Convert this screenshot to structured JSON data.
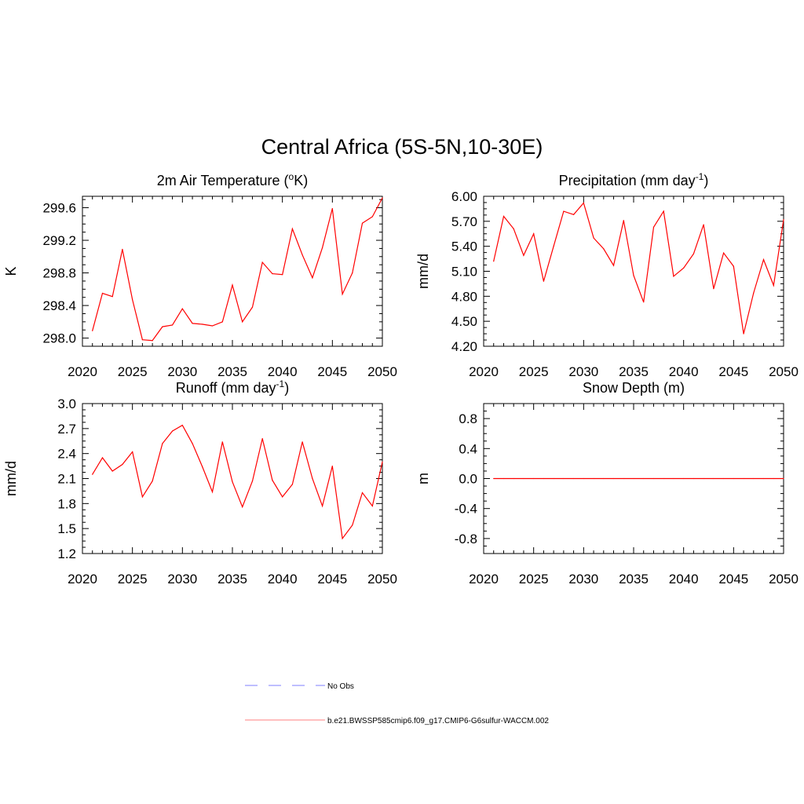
{
  "figure": {
    "title": "Central Africa (5S-5N,10-30E)"
  },
  "colors": {
    "model_line": "#ff0000",
    "obs_line": "#9999ff",
    "axis": "#000000",
    "background": "#ffffff"
  },
  "chart_data": [
    {
      "type": "line",
      "title": "2m Air Temperature (",
      "title_superscript": "o",
      "title_suffix": "K)",
      "ylabel": "K",
      "xlim": [
        2020,
        2050
      ],
      "ylim": [
        297.9,
        299.74
      ],
      "xticks": [
        2020,
        2025,
        2030,
        2035,
        2040,
        2045,
        2050
      ],
      "xtick_labels": [
        "2020",
        "2025",
        "2030",
        "2035",
        "2040",
        "2045",
        "2050"
      ],
      "yticks": [
        298.0,
        298.4,
        298.8,
        299.2,
        299.6
      ],
      "ytick_labels": [
        "298.0",
        "298.4",
        "298.8",
        "299.2",
        "299.6"
      ],
      "x": [
        2021,
        2022,
        2023,
        2024,
        2025,
        2026,
        2027,
        2028,
        2029,
        2030,
        2031,
        2032,
        2033,
        2034,
        2035,
        2036,
        2037,
        2038,
        2039,
        2040,
        2041,
        2042,
        2043,
        2044,
        2045,
        2046,
        2047,
        2048,
        2049,
        2050
      ],
      "series": [
        {
          "name": "b.e21.BWSSP585cmip6.f09_g17.CMIP6-G6sulfur-WACCM.002",
          "values": [
            298.09,
            298.55,
            298.51,
            299.09,
            298.47,
            297.98,
            297.97,
            298.14,
            298.16,
            298.36,
            298.18,
            298.17,
            298.15,
            298.2,
            298.65,
            298.2,
            298.38,
            298.93,
            298.79,
            298.78,
            299.34,
            299.02,
            298.74,
            299.11,
            299.59,
            298.54,
            298.8,
            299.41,
            299.49,
            299.72
          ]
        }
      ]
    },
    {
      "type": "line",
      "title": "Precipitation (mm day",
      "title_superscript": "-1",
      "title_suffix": ")",
      "ylabel": "mm/d",
      "xlim": [
        2020,
        2050
      ],
      "ylim": [
        4.2,
        6.0
      ],
      "xticks": [
        2020,
        2025,
        2030,
        2035,
        2040,
        2045,
        2050
      ],
      "xtick_labels": [
        "2020",
        "2025",
        "2030",
        "2035",
        "2040",
        "2045",
        "2050"
      ],
      "yticks": [
        4.2,
        4.5,
        4.8,
        5.1,
        5.4,
        5.7,
        6.0
      ],
      "ytick_labels": [
        "4.20",
        "4.50",
        "4.80",
        "5.10",
        "5.40",
        "5.70",
        "6.00"
      ],
      "x": [
        2021,
        2022,
        2023,
        2024,
        2025,
        2026,
        2027,
        2028,
        2029,
        2030,
        2031,
        2032,
        2033,
        2034,
        2035,
        2036,
        2037,
        2038,
        2039,
        2040,
        2041,
        2042,
        2043,
        2044,
        2045,
        2046,
        2047,
        2048,
        2049,
        2050
      ],
      "series": [
        {
          "name": "b.e21.BWSSP585cmip6.f09_g17.CMIP6-G6sulfur-WACCM.002",
          "values": [
            5.22,
            5.76,
            5.61,
            5.29,
            5.55,
            4.98,
            5.4,
            5.82,
            5.78,
            5.92,
            5.5,
            5.37,
            5.17,
            5.71,
            5.05,
            4.73,
            5.63,
            5.82,
            5.04,
            5.14,
            5.31,
            5.66,
            4.89,
            5.32,
            5.16,
            4.35,
            4.84,
            5.24,
            4.93,
            5.72
          ]
        }
      ]
    },
    {
      "type": "line",
      "title": "Runoff (mm day",
      "title_superscript": "-1",
      "title_suffix": ")",
      "ylabel": "mm/d",
      "xlim": [
        2020,
        2050
      ],
      "ylim": [
        1.2,
        3.0
      ],
      "xticks": [
        2020,
        2025,
        2030,
        2035,
        2040,
        2045,
        2050
      ],
      "xtick_labels": [
        "2020",
        "2025",
        "2030",
        "2035",
        "2040",
        "2045",
        "2050"
      ],
      "yticks": [
        1.2,
        1.5,
        1.8,
        2.1,
        2.4,
        2.7,
        3.0
      ],
      "ytick_labels": [
        "1.2",
        "1.5",
        "1.8",
        "2.1",
        "2.4",
        "2.7",
        "3.0"
      ],
      "x": [
        2021,
        2022,
        2023,
        2024,
        2025,
        2026,
        2027,
        2028,
        2029,
        2030,
        2031,
        2032,
        2033,
        2034,
        2035,
        2036,
        2037,
        2038,
        2039,
        2040,
        2041,
        2042,
        2043,
        2044,
        2045,
        2046,
        2047,
        2048,
        2049,
        2050
      ],
      "series": [
        {
          "name": "b.e21.BWSSP585cmip6.f09_g17.CMIP6-G6sulfur-WACCM.002",
          "values": [
            2.15,
            2.35,
            2.19,
            2.27,
            2.42,
            1.88,
            2.07,
            2.52,
            2.67,
            2.74,
            2.52,
            2.24,
            1.94,
            2.54,
            2.06,
            1.76,
            2.07,
            2.58,
            2.08,
            1.88,
            2.03,
            2.54,
            2.1,
            1.77,
            2.25,
            1.38,
            1.54,
            1.93,
            1.77,
            2.3
          ]
        }
      ]
    },
    {
      "type": "line",
      "title": "Snow Depth (m)",
      "title_superscript": "",
      "title_suffix": "",
      "ylabel": "m",
      "xlim": [
        2020,
        2050
      ],
      "ylim": [
        -1.0,
        1.0
      ],
      "xticks": [
        2020,
        2025,
        2030,
        2035,
        2040,
        2045,
        2050
      ],
      "xtick_labels": [
        "2020",
        "2025",
        "2030",
        "2035",
        "2040",
        "2045",
        "2050"
      ],
      "yticks": [
        -0.8,
        -0.4,
        0.0,
        0.4,
        0.8
      ],
      "ytick_labels": [
        "-0.8",
        "-0.4",
        "0.0",
        "0.4",
        "0.8"
      ],
      "x": [
        2021,
        2022,
        2023,
        2024,
        2025,
        2026,
        2027,
        2028,
        2029,
        2030,
        2031,
        2032,
        2033,
        2034,
        2035,
        2036,
        2037,
        2038,
        2039,
        2040,
        2041,
        2042,
        2043,
        2044,
        2045,
        2046,
        2047,
        2048,
        2049,
        2050
      ],
      "series": [
        {
          "name": "b.e21.BWSSP585cmip6.f09_g17.CMIP6-G6sulfur-WACCM.002",
          "values": [
            0,
            0,
            0,
            0,
            0,
            0,
            0,
            0,
            0,
            0,
            0,
            0,
            0,
            0,
            0,
            0,
            0,
            0,
            0,
            0,
            0,
            0,
            0,
            0,
            0,
            0,
            0,
            0,
            0,
            0
          ]
        }
      ]
    }
  ],
  "legend": {
    "items": [
      {
        "label": "No Obs",
        "style": "dashed",
        "color": "#9999ff"
      },
      {
        "label": "b.e21.BWSSP585cmip6.f09_g17.CMIP6-G6sulfur-WACCM.002",
        "style": "solid",
        "color": "#ff9999"
      }
    ]
  }
}
